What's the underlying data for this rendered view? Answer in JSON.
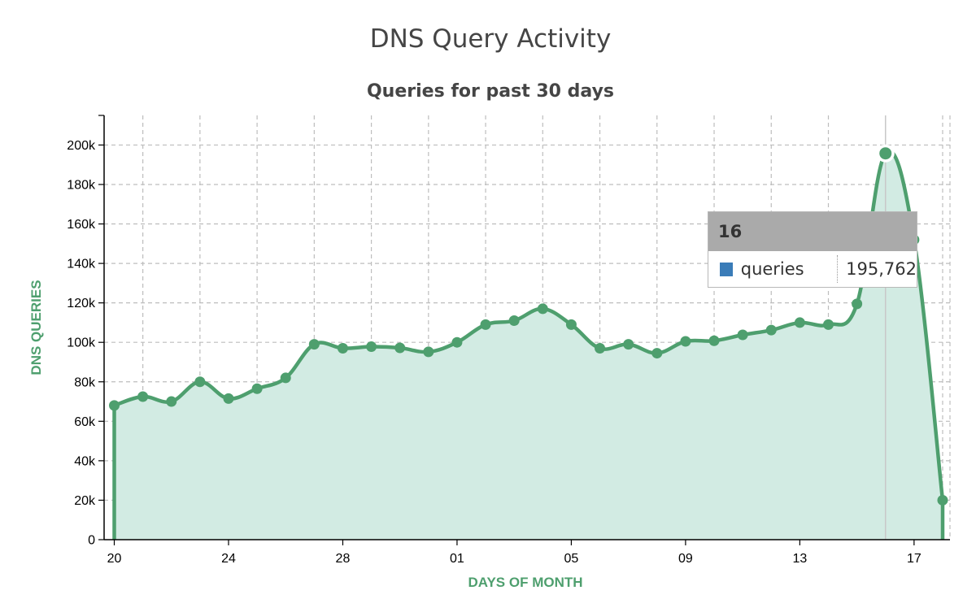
{
  "header": {
    "title": "DNS Query Activity",
    "subtitle": "Queries for past 30 days"
  },
  "colors": {
    "line": "#4e9f6e",
    "fill": "#d2ebe3",
    "axis_label": "#4e9f6e",
    "legend_swatch": "#3a7cb8"
  },
  "chart_data": {
    "type": "area",
    "title": "Queries for past 30 days",
    "xlabel": "DAYS OF MONTH",
    "ylabel": "DNS QUERIES",
    "ylim": [
      0,
      215000
    ],
    "yticks": [
      0,
      20000,
      40000,
      60000,
      80000,
      100000,
      120000,
      140000,
      160000,
      180000,
      200000
    ],
    "ytick_labels": [
      "0",
      "20k",
      "40k",
      "60k",
      "80k",
      "100k",
      "120k",
      "140k",
      "160k",
      "180k",
      "200k"
    ],
    "xtick_labels": [
      "20",
      "24",
      "28",
      "01",
      "05",
      "09",
      "13",
      "17"
    ],
    "xtick_positions": [
      0,
      4,
      8,
      12,
      16,
      20,
      24,
      28
    ],
    "grid": true,
    "series": [
      {
        "name": "queries",
        "days": [
          "20",
          "21",
          "22",
          "23",
          "24",
          "25",
          "26",
          "27",
          "28",
          "29",
          "30",
          "31",
          "01",
          "02",
          "03",
          "04",
          "05",
          "06",
          "07",
          "08",
          "09",
          "10",
          "11",
          "12",
          "13",
          "14",
          "15",
          "16",
          "17",
          "18"
        ],
        "values": [
          68000,
          72500,
          70000,
          80000,
          71500,
          76500,
          82000,
          99000,
          97000,
          97800,
          97200,
          95200,
          100000,
          109000,
          111000,
          117000,
          109000,
          97000,
          99000,
          94500,
          100500,
          100800,
          103800,
          106200,
          110000,
          109000,
          119500,
          195762,
          152000,
          20000
        ]
      }
    ]
  },
  "tooltip": {
    "day": "16",
    "series_name": "queries",
    "value": "195,762"
  }
}
